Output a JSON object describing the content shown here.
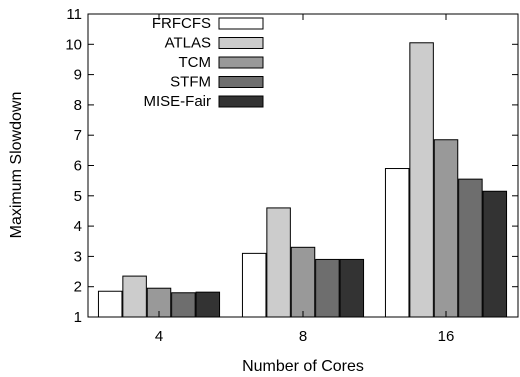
{
  "chart_data": {
    "type": "bar",
    "xlabel": "Number of Cores",
    "ylabel": "Maximum Slowdown",
    "ylim": [
      1,
      11
    ],
    "yticks": [
      "1",
      "2",
      "3",
      "4",
      "5",
      "6",
      "7",
      "8",
      "9",
      "10",
      "11"
    ],
    "categories": [
      "4",
      "8",
      "16"
    ],
    "series": [
      {
        "name": "FRFCFS",
        "color": "#ffffff",
        "values": [
          1.85,
          3.1,
          5.9
        ]
      },
      {
        "name": "ATLAS",
        "color": "#cccccc",
        "values": [
          2.35,
          4.6,
          10.05
        ]
      },
      {
        "name": "TCM",
        "color": "#999999",
        "values": [
          1.95,
          3.3,
          6.85
        ]
      },
      {
        "name": "STFM",
        "color": "#6e6e6e",
        "values": [
          1.8,
          2.9,
          5.55
        ]
      },
      {
        "name": "MISE-Fair",
        "color": "#333333",
        "values": [
          1.82,
          2.9,
          5.15
        ]
      }
    ],
    "legend_position": "top-left",
    "grid": false
  }
}
